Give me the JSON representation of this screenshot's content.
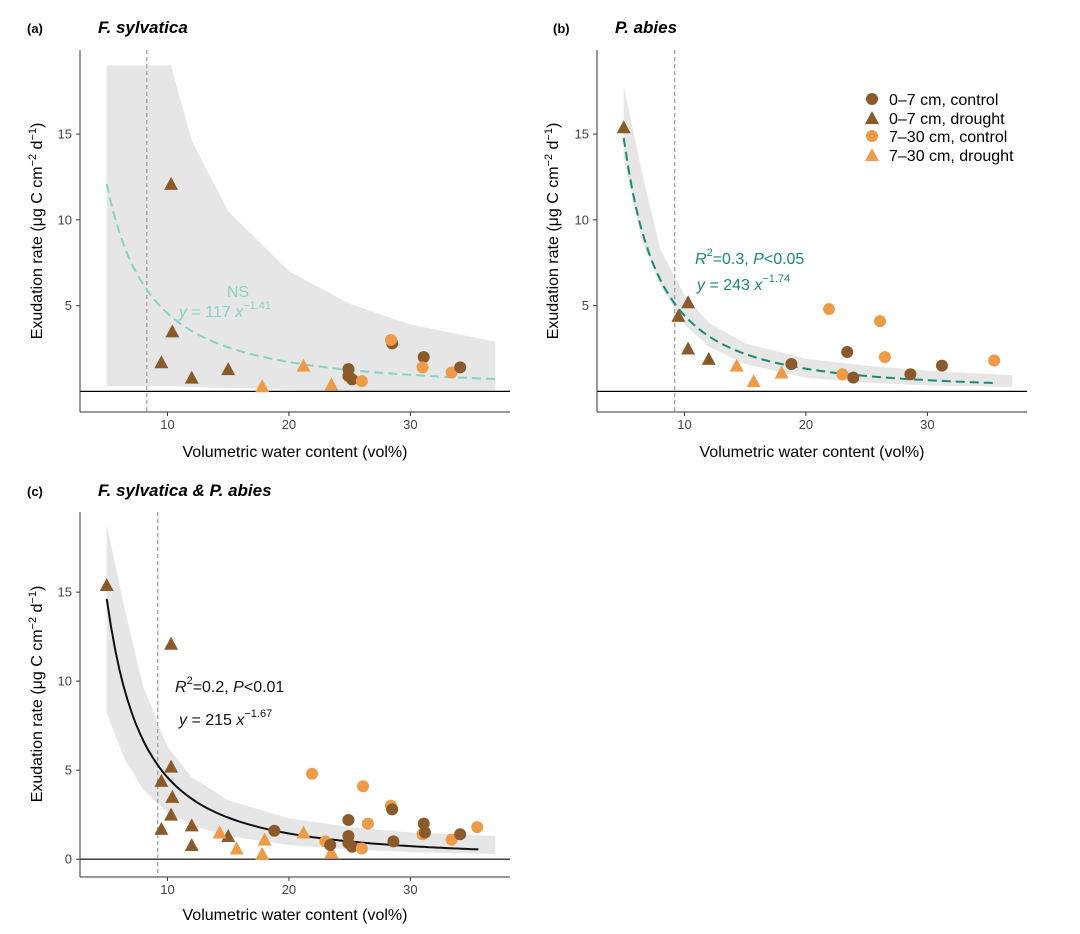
{
  "colors": {
    "dark_brown": "#8a5a2b",
    "orange": "#ee9b48",
    "ns_curve": "#86d4c4",
    "sig_curve": "#188a72",
    "combined_curve": "#111111",
    "band": "#e6e6e6",
    "vline": "#9a9a9a"
  },
  "legend": {
    "entries": [
      {
        "label": "0–7 cm, control",
        "shape": "circle",
        "color": "#8a5a2b"
      },
      {
        "label": "0–7 cm, drought",
        "shape": "triangle",
        "color": "#8a5a2b"
      },
      {
        "label": "7–30 cm, control",
        "shape": "circle",
        "color": "#ee9b48"
      },
      {
        "label": "7–30 cm, drought",
        "shape": "triangle",
        "color": "#ee9b48"
      }
    ]
  },
  "chart_data": [
    {
      "type": "scatter",
      "panel_label": "(a)",
      "title": "F. sylvatica",
      "xlabel": "Volumetric water content (vol%)",
      "ylabel_prefix": "Exudation rate (",
      "ylabel_mu": "μ",
      "ylabel_mid": "g C cm",
      "ylabel_exp1": "−2",
      "ylabel_d": " d",
      "ylabel_exp2": "−1",
      "ylabel_suffix": ")",
      "xlim": [
        2.8,
        38.2
      ],
      "ylim": [
        -1.2,
        19.9
      ],
      "xticks": [
        10,
        20,
        30
      ],
      "yticks": [
        5,
        10,
        15
      ],
      "vline": 8.3,
      "fit": {
        "a": 117,
        "b": -1.41,
        "x_range": [
          5,
          37
        ],
        "style": "dashed",
        "color": "#86d4c4"
      },
      "band": {
        "lower": [
          [
            5,
            0.3
          ],
          [
            10,
            0.3
          ],
          [
            15,
            0.2
          ],
          [
            20,
            0.1
          ],
          [
            25,
            0.05
          ],
          [
            30,
            0.05
          ],
          [
            37,
            0.05
          ]
        ],
        "upper": [
          [
            5,
            19.0
          ],
          [
            10.3,
            19.0
          ],
          [
            12,
            14.6
          ],
          [
            15,
            10.5
          ],
          [
            20,
            7.0
          ],
          [
            25,
            5.1
          ],
          [
            30,
            3.9
          ],
          [
            37,
            2.9
          ]
        ]
      },
      "annotations": {
        "stat_line": "NS",
        "eq_prefix": "y",
        "eq_mid": " = 117 ",
        "eq_x": "x",
        "eq_exp": "−1.41"
      },
      "points": [
        {
          "x": 10.3,
          "y": 12.1,
          "group": "0–7 cm, drought"
        },
        {
          "x": 10.4,
          "y": 3.5,
          "group": "0–7 cm, drought"
        },
        {
          "x": 9.5,
          "y": 1.7,
          "group": "0–7 cm, drought"
        },
        {
          "x": 12.0,
          "y": 0.8,
          "group": "0–7 cm, drought"
        },
        {
          "x": 15.0,
          "y": 1.3,
          "group": "0–7 cm, drought"
        },
        {
          "x": 17.8,
          "y": 0.3,
          "group": "7–30 cm, drought"
        },
        {
          "x": 21.2,
          "y": 1.5,
          "group": "7–30 cm, drought"
        },
        {
          "x": 23.5,
          "y": 0.4,
          "group": "7–30 cm, drought"
        },
        {
          "x": 24.9,
          "y": 1.3,
          "group": "0–7 cm, control"
        },
        {
          "x": 24.9,
          "y": 0.9,
          "group": "0–7 cm, control"
        },
        {
          "x": 25.2,
          "y": 0.7,
          "group": "0–7 cm, control"
        },
        {
          "x": 26.0,
          "y": 0.6,
          "group": "7–30 cm, control"
        },
        {
          "x": 28.5,
          "y": 2.8,
          "group": "0–7 cm, control"
        },
        {
          "x": 28.4,
          "y": 3.0,
          "group": "7–30 cm, control"
        },
        {
          "x": 31.1,
          "y": 2.0,
          "group": "0–7 cm, control"
        },
        {
          "x": 31.0,
          "y": 1.4,
          "group": "7–30 cm, control"
        },
        {
          "x": 33.4,
          "y": 1.1,
          "group": "7–30 cm, control"
        },
        {
          "x": 34.1,
          "y": 1.4,
          "group": "0–7 cm, control"
        }
      ]
    },
    {
      "type": "scatter",
      "panel_label": "(b)",
      "title": "P. abies",
      "xlabel": "Volumetric water content (vol%)",
      "ylabel_prefix": "Exudation rate (",
      "ylabel_mu": "μ",
      "ylabel_mid": "g C cm",
      "ylabel_exp1": "−2",
      "ylabel_d": " d",
      "ylabel_exp2": "−1",
      "ylabel_suffix": ")",
      "xlim": [
        2.8,
        38.2
      ],
      "ylim": [
        -1.2,
        19.9
      ],
      "xticks": [
        10,
        20,
        30
      ],
      "yticks": [
        5,
        10,
        15
      ],
      "vline": 9.2,
      "fit": {
        "a": 243,
        "b": -1.74,
        "x_range": [
          5,
          35.6
        ],
        "style": "dashed",
        "color": "#188a72"
      },
      "band": {
        "lower": [
          [
            5,
            13.6
          ],
          [
            6.5,
            8.8
          ],
          [
            8,
            6.2
          ],
          [
            10,
            3.9
          ],
          [
            12,
            2.6
          ],
          [
            15,
            1.6
          ],
          [
            20,
            0.8
          ],
          [
            25,
            0.5
          ],
          [
            30,
            0.35
          ],
          [
            37,
            0.25
          ]
        ],
        "upper": [
          [
            5,
            17.8
          ],
          [
            6.5,
            12.8
          ],
          [
            8,
            8.3
          ],
          [
            10,
            5.6
          ],
          [
            12,
            4.0
          ],
          [
            15,
            2.8
          ],
          [
            20,
            1.9
          ],
          [
            25,
            1.5
          ],
          [
            30,
            1.2
          ],
          [
            37,
            0.95
          ]
        ]
      },
      "annotations": {
        "stat_R": "R",
        "stat_R_exp": "2",
        "stat_mid": "=0.3,  ",
        "stat_P": "P",
        "stat_tail": "<0.05",
        "eq_prefix": "y",
        "eq_mid": " = 243 ",
        "eq_x": "x",
        "eq_exp": "−1.74"
      },
      "points": [
        {
          "x": 5.0,
          "y": 15.4,
          "group": "0–7 cm, drought"
        },
        {
          "x": 9.5,
          "y": 4.4,
          "group": "0–7 cm, drought"
        },
        {
          "x": 10.3,
          "y": 5.2,
          "group": "0–7 cm, drought"
        },
        {
          "x": 10.3,
          "y": 2.5,
          "group": "0–7 cm, drought"
        },
        {
          "x": 12.0,
          "y": 1.9,
          "group": "0–7 cm, drought"
        },
        {
          "x": 14.3,
          "y": 1.5,
          "group": "7–30 cm, drought"
        },
        {
          "x": 15.7,
          "y": 0.6,
          "group": "7–30 cm, drought"
        },
        {
          "x": 18.0,
          "y": 1.1,
          "group": "7–30 cm, drought"
        },
        {
          "x": 18.8,
          "y": 1.6,
          "group": "0–7 cm, control"
        },
        {
          "x": 21.9,
          "y": 4.8,
          "group": "7–30 cm, control"
        },
        {
          "x": 23.0,
          "y": 1.0,
          "group": "7–30 cm, control"
        },
        {
          "x": 23.4,
          "y": 2.3,
          "group": "0–7 cm, control"
        },
        {
          "x": 23.9,
          "y": 0.8,
          "group": "0–7 cm, control"
        },
        {
          "x": 26.1,
          "y": 4.1,
          "group": "7–30 cm, control"
        },
        {
          "x": 26.5,
          "y": 2.0,
          "group": "7–30 cm, control"
        },
        {
          "x": 28.6,
          "y": 1.0,
          "group": "0–7 cm, control"
        },
        {
          "x": 31.2,
          "y": 1.5,
          "group": "0–7 cm, control"
        },
        {
          "x": 35.5,
          "y": 1.8,
          "group": "7–30 cm, control"
        }
      ]
    },
    {
      "type": "scatter",
      "panel_label": "(c)",
      "title": "F. sylvatica & P. abies",
      "xlabel": "Volumetric water content (vol%)",
      "ylabel_prefix": "Exudation rate (",
      "ylabel_mu": "μ",
      "ylabel_mid": "g C cm",
      "ylabel_exp1": "−2",
      "ylabel_d": " d",
      "ylabel_exp2": "−1",
      "ylabel_suffix": ")",
      "xlim": [
        2.8,
        38.2
      ],
      "ylim": [
        -1.0,
        19.5
      ],
      "xticks": [
        10,
        20,
        30
      ],
      "yticks": [
        0,
        5,
        10,
        15
      ],
      "vline": 9.2,
      "fit": {
        "a": 215,
        "b": -1.67,
        "x_range": [
          5,
          35.6
        ],
        "style": "solid",
        "color": "#111111"
      },
      "band": {
        "lower": [
          [
            5,
            8.2
          ],
          [
            6.5,
            5.6
          ],
          [
            8,
            3.9
          ],
          [
            10,
            2.6
          ],
          [
            12,
            1.9
          ],
          [
            15,
            1.3
          ],
          [
            20,
            0.8
          ],
          [
            25,
            0.55
          ],
          [
            30,
            0.4
          ],
          [
            37,
            0.3
          ]
        ],
        "upper": [
          [
            5,
            18.8
          ],
          [
            6.5,
            14.0
          ],
          [
            8,
            9.7
          ],
          [
            10,
            6.3
          ],
          [
            12,
            4.6
          ],
          [
            15,
            3.3
          ],
          [
            20,
            2.3
          ],
          [
            25,
            1.8
          ],
          [
            30,
            1.5
          ],
          [
            37,
            1.3
          ]
        ]
      },
      "annotations": {
        "stat_R": "R",
        "stat_R_exp": "2",
        "stat_mid": "=0.2,  ",
        "stat_P": "P",
        "stat_tail": "<0.01",
        "eq_prefix": "y",
        "eq_mid": " = 215  ",
        "eq_x": "x",
        "eq_exp": "−1.67"
      },
      "points": [
        {
          "x": 5.0,
          "y": 15.4,
          "group": "0–7 cm, drought"
        },
        {
          "x": 10.3,
          "y": 12.1,
          "group": "0–7 cm, drought"
        },
        {
          "x": 10.3,
          "y": 5.2,
          "group": "0–7 cm, drought"
        },
        {
          "x": 9.5,
          "y": 4.4,
          "group": "0–7 cm, drought"
        },
        {
          "x": 10.4,
          "y": 3.5,
          "group": "0–7 cm, drought"
        },
        {
          "x": 10.3,
          "y": 2.5,
          "group": "0–7 cm, drought"
        },
        {
          "x": 9.5,
          "y": 1.7,
          "group": "0–7 cm, drought"
        },
        {
          "x": 12.0,
          "y": 1.9,
          "group": "0–7 cm, drought"
        },
        {
          "x": 12.0,
          "y": 0.8,
          "group": "0–7 cm, drought"
        },
        {
          "x": 15.0,
          "y": 1.3,
          "group": "0–7 cm, drought"
        },
        {
          "x": 14.3,
          "y": 1.5,
          "group": "7–30 cm, drought"
        },
        {
          "x": 15.7,
          "y": 0.6,
          "group": "7–30 cm, drought"
        },
        {
          "x": 17.8,
          "y": 0.3,
          "group": "7–30 cm, drought"
        },
        {
          "x": 18.0,
          "y": 1.1,
          "group": "7–30 cm, drought"
        },
        {
          "x": 21.2,
          "y": 1.5,
          "group": "7–30 cm, drought"
        },
        {
          "x": 23.5,
          "y": 0.4,
          "group": "7–30 cm, drought"
        },
        {
          "x": 18.8,
          "y": 1.6,
          "group": "0–7 cm, control"
        },
        {
          "x": 21.9,
          "y": 4.8,
          "group": "7–30 cm, control"
        },
        {
          "x": 23.0,
          "y": 1.0,
          "group": "7–30 cm, control"
        },
        {
          "x": 23.4,
          "y": 0.8,
          "group": "0–7 cm, control"
        },
        {
          "x": 24.9,
          "y": 2.2,
          "group": "0–7 cm, control"
        },
        {
          "x": 24.9,
          "y": 1.3,
          "group": "0–7 cm, control"
        },
        {
          "x": 24.9,
          "y": 0.9,
          "group": "0–7 cm, control"
        },
        {
          "x": 25.2,
          "y": 0.7,
          "group": "0–7 cm, control"
        },
        {
          "x": 26.0,
          "y": 0.6,
          "group": "7–30 cm, control"
        },
        {
          "x": 26.1,
          "y": 4.1,
          "group": "7–30 cm, control"
        },
        {
          "x": 26.5,
          "y": 2.0,
          "group": "7–30 cm, control"
        },
        {
          "x": 28.4,
          "y": 3.0,
          "group": "7–30 cm, control"
        },
        {
          "x": 28.5,
          "y": 2.8,
          "group": "0–7 cm, control"
        },
        {
          "x": 28.6,
          "y": 1.0,
          "group": "0–7 cm, control"
        },
        {
          "x": 31.1,
          "y": 2.0,
          "group": "0–7 cm, control"
        },
        {
          "x": 31.0,
          "y": 1.4,
          "group": "7–30 cm, control"
        },
        {
          "x": 31.2,
          "y": 1.5,
          "group": "0–7 cm, control"
        },
        {
          "x": 33.4,
          "y": 1.1,
          "group": "7–30 cm, control"
        },
        {
          "x": 34.1,
          "y": 1.4,
          "group": "0–7 cm, control"
        },
        {
          "x": 35.5,
          "y": 1.8,
          "group": "7–30 cm, control"
        }
      ]
    }
  ]
}
